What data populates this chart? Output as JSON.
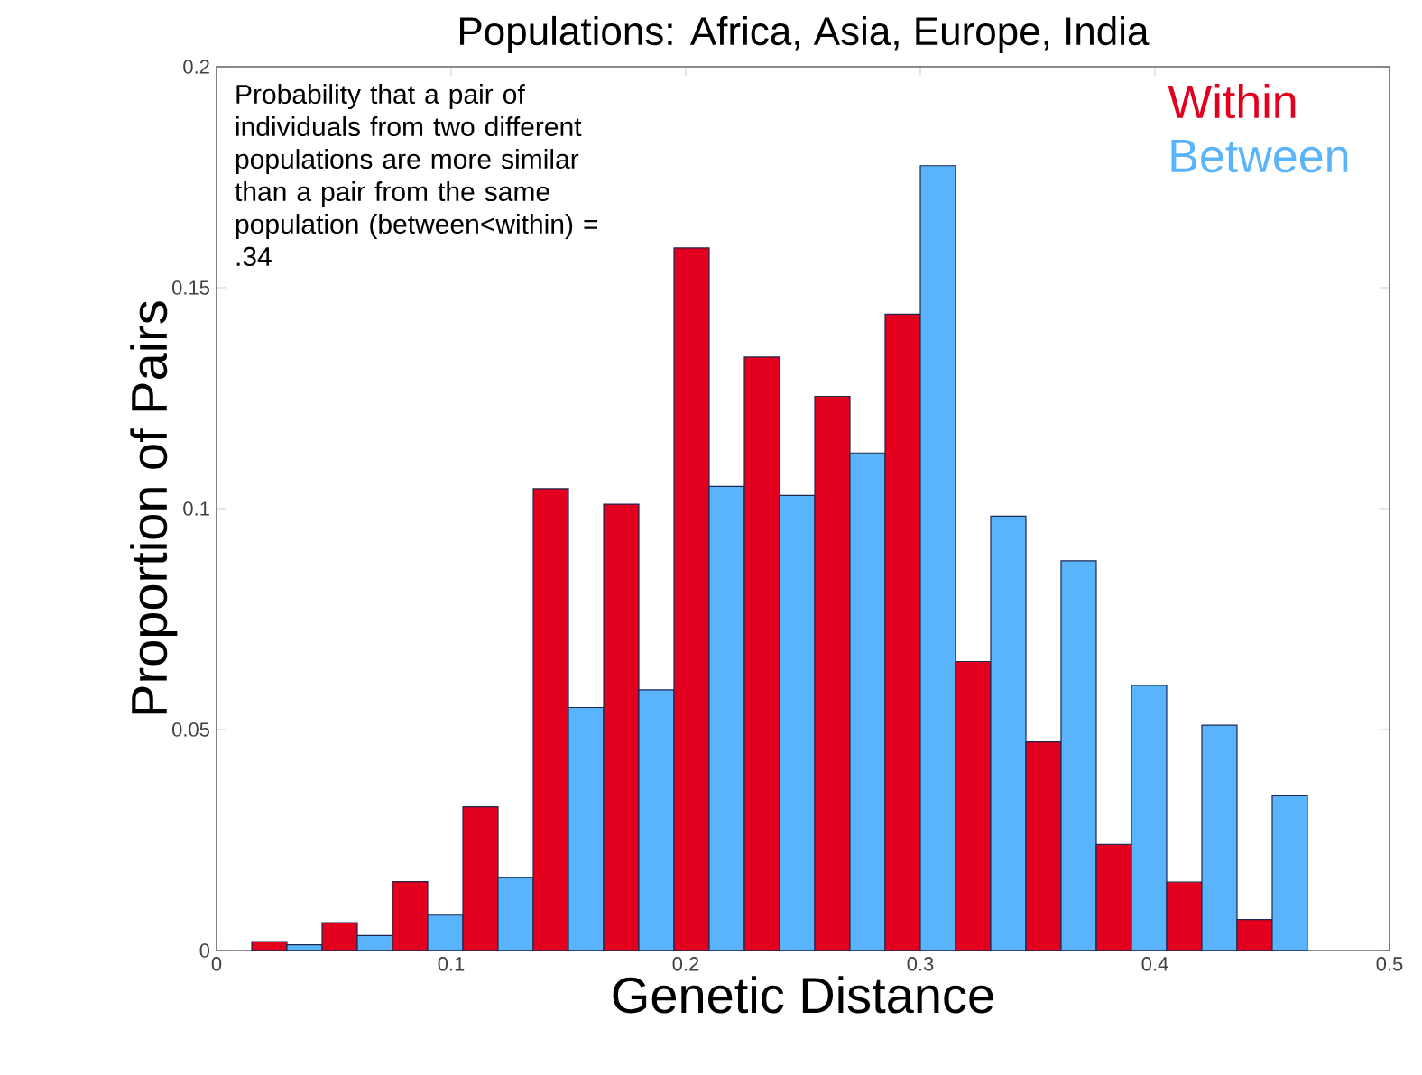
{
  "chart_data": {
    "type": "histogram",
    "title": "Populations: Africa, Asia, Europe, India",
    "xlabel": "Genetic Distance",
    "ylabel": "Proportion of Pairs",
    "bins": [
      0.015,
      0.045,
      0.075,
      0.105,
      0.135,
      0.165,
      0.195,
      0.225,
      0.255,
      0.285,
      0.315,
      0.345,
      0.375,
      0.405,
      0.435,
      0.465
    ],
    "series": [
      {
        "name": "Within",
        "color": "#e2001e",
        "values": [
          0.002,
          0.0063,
          0.0156,
          0.0325,
          0.1045,
          0.101,
          0.159,
          0.1343,
          0.1254,
          0.144,
          0.0654,
          0.0472,
          0.024,
          0.0155,
          0.007
        ]
      },
      {
        "name": "Between",
        "color": "#5ab4fb",
        "values": [
          0.0013,
          0.0034,
          0.008,
          0.0165,
          0.055,
          0.059,
          0.105,
          0.103,
          0.1126,
          0.1776,
          0.0983,
          0.0882,
          0.06,
          0.051,
          0.035
        ]
      }
    ],
    "xlim": [
      0,
      0.5
    ],
    "ylim": [
      0,
      0.2
    ],
    "xticks": [
      0,
      0.1,
      0.2,
      0.3,
      0.4,
      0.5
    ],
    "yticks": [
      0,
      0.05,
      0.1,
      0.15,
      0.2
    ],
    "legend": "top right",
    "grid": false,
    "annotations": [
      "Probability that a pair of individuals from two different populations are more similar than a pair from the same population (between<within) = .34"
    ]
  }
}
